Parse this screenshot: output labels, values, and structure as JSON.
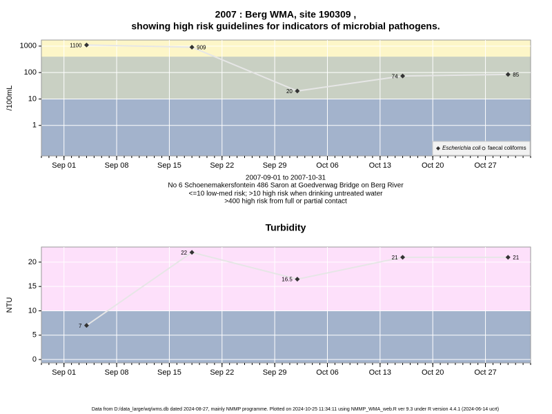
{
  "chart_data": [
    {
      "type": "line",
      "title": "2007 : Berg WMA, site 190309 ,",
      "title_line2": "showing high risk guidelines for indicators of microbial pathogens.",
      "y_label": "/100mL",
      "log_scale": true,
      "grid": true,
      "legend": "bottom-right",
      "subtitle": [
        "2007-09-01 to 2007-10-31",
        "No 6 Schoenemakersfontein 486 Saron at Goedverwag Bridge on Berg River",
        "<=10 low-med risk; >10 high risk when drinking untreated water",
        ">400 high risk from full or partial contact"
      ],
      "x": [
        "2007-09-04",
        "2007-09-18",
        "2007-10-02",
        "2007-10-16",
        "2007-10-30"
      ],
      "xlim": [
        "2007-08-29",
        "2007-11-02"
      ],
      "xticks": [
        {
          "value": "2007-09-01",
          "label": "Sep 01"
        },
        {
          "value": "2007-09-08",
          "label": "Sep 08"
        },
        {
          "value": "2007-09-15",
          "label": "Sep 15"
        },
        {
          "value": "2007-09-22",
          "label": "Sep 22"
        },
        {
          "value": "2007-09-29",
          "label": "Sep 29"
        },
        {
          "value": "2007-10-06",
          "label": "Oct 06"
        },
        {
          "value": "2007-10-13",
          "label": "Oct 13"
        },
        {
          "value": "2007-10-20",
          "label": "Oct 20"
        },
        {
          "value": "2007-10-27",
          "label": "Oct 27"
        }
      ],
      "ylim": [
        0.07,
        1700
      ],
      "yticks": [
        1,
        10,
        100,
        1000
      ],
      "bands": [
        {
          "from": 0.07,
          "to": 10,
          "color": "#a3b3cc"
        },
        {
          "from": 10,
          "to": 400,
          "color": "#c9d0c3"
        },
        {
          "from": 400,
          "to": 1700,
          "color": "#fdf6c8"
        }
      ],
      "series": [
        {
          "name": "Escherichia coli",
          "color": "#333333",
          "values": [
            1100,
            909,
            20,
            74,
            85
          ]
        },
        {
          "name": "faecal coliforms",
          "color": "#333333",
          "values": [
            null,
            null,
            null,
            null,
            null
          ]
        }
      ]
    },
    {
      "type": "line",
      "title": "Turbidity",
      "y_label": "NTU",
      "log_scale": false,
      "grid": true,
      "x": [
        "2007-09-04",
        "2007-09-18",
        "2007-10-02",
        "2007-10-16",
        "2007-10-30"
      ],
      "xlim": [
        "2007-08-29",
        "2007-11-02"
      ],
      "xticks": [
        {
          "value": "2007-09-01",
          "label": "Sep 01"
        },
        {
          "value": "2007-09-08",
          "label": "Sep 08"
        },
        {
          "value": "2007-09-15",
          "label": "Sep 15"
        },
        {
          "value": "2007-09-22",
          "label": "Sep 22"
        },
        {
          "value": "2007-09-29",
          "label": "Sep 29"
        },
        {
          "value": "2007-10-06",
          "label": "Oct 06"
        },
        {
          "value": "2007-10-13",
          "label": "Oct 13"
        },
        {
          "value": "2007-10-20",
          "label": "Oct 20"
        },
        {
          "value": "2007-10-27",
          "label": "Oct 27"
        }
      ],
      "ylim": [
        -0.7,
        23.1
      ],
      "yticks": [
        0,
        5,
        10,
        15,
        20
      ],
      "bands": [
        {
          "from": -0.7,
          "to": 10,
          "color": "#a3b3cc"
        },
        {
          "from": 10,
          "to": 23.1,
          "color": "#fde0fa"
        }
      ],
      "series": [
        {
          "name": "Turbidity",
          "color": "#333333",
          "values": [
            7,
            22,
            16.5,
            21,
            21
          ]
        }
      ]
    }
  ],
  "footer": "Data from D:/data_large/wq/wms.db dated 2024-08-27, mainly NMMP programme. Plotted on 2024-10-25 11:34:11 using NMMP_WMA_web.R ver 9.3 under R version 4.4.1 (2024-06-14 ucrt)"
}
